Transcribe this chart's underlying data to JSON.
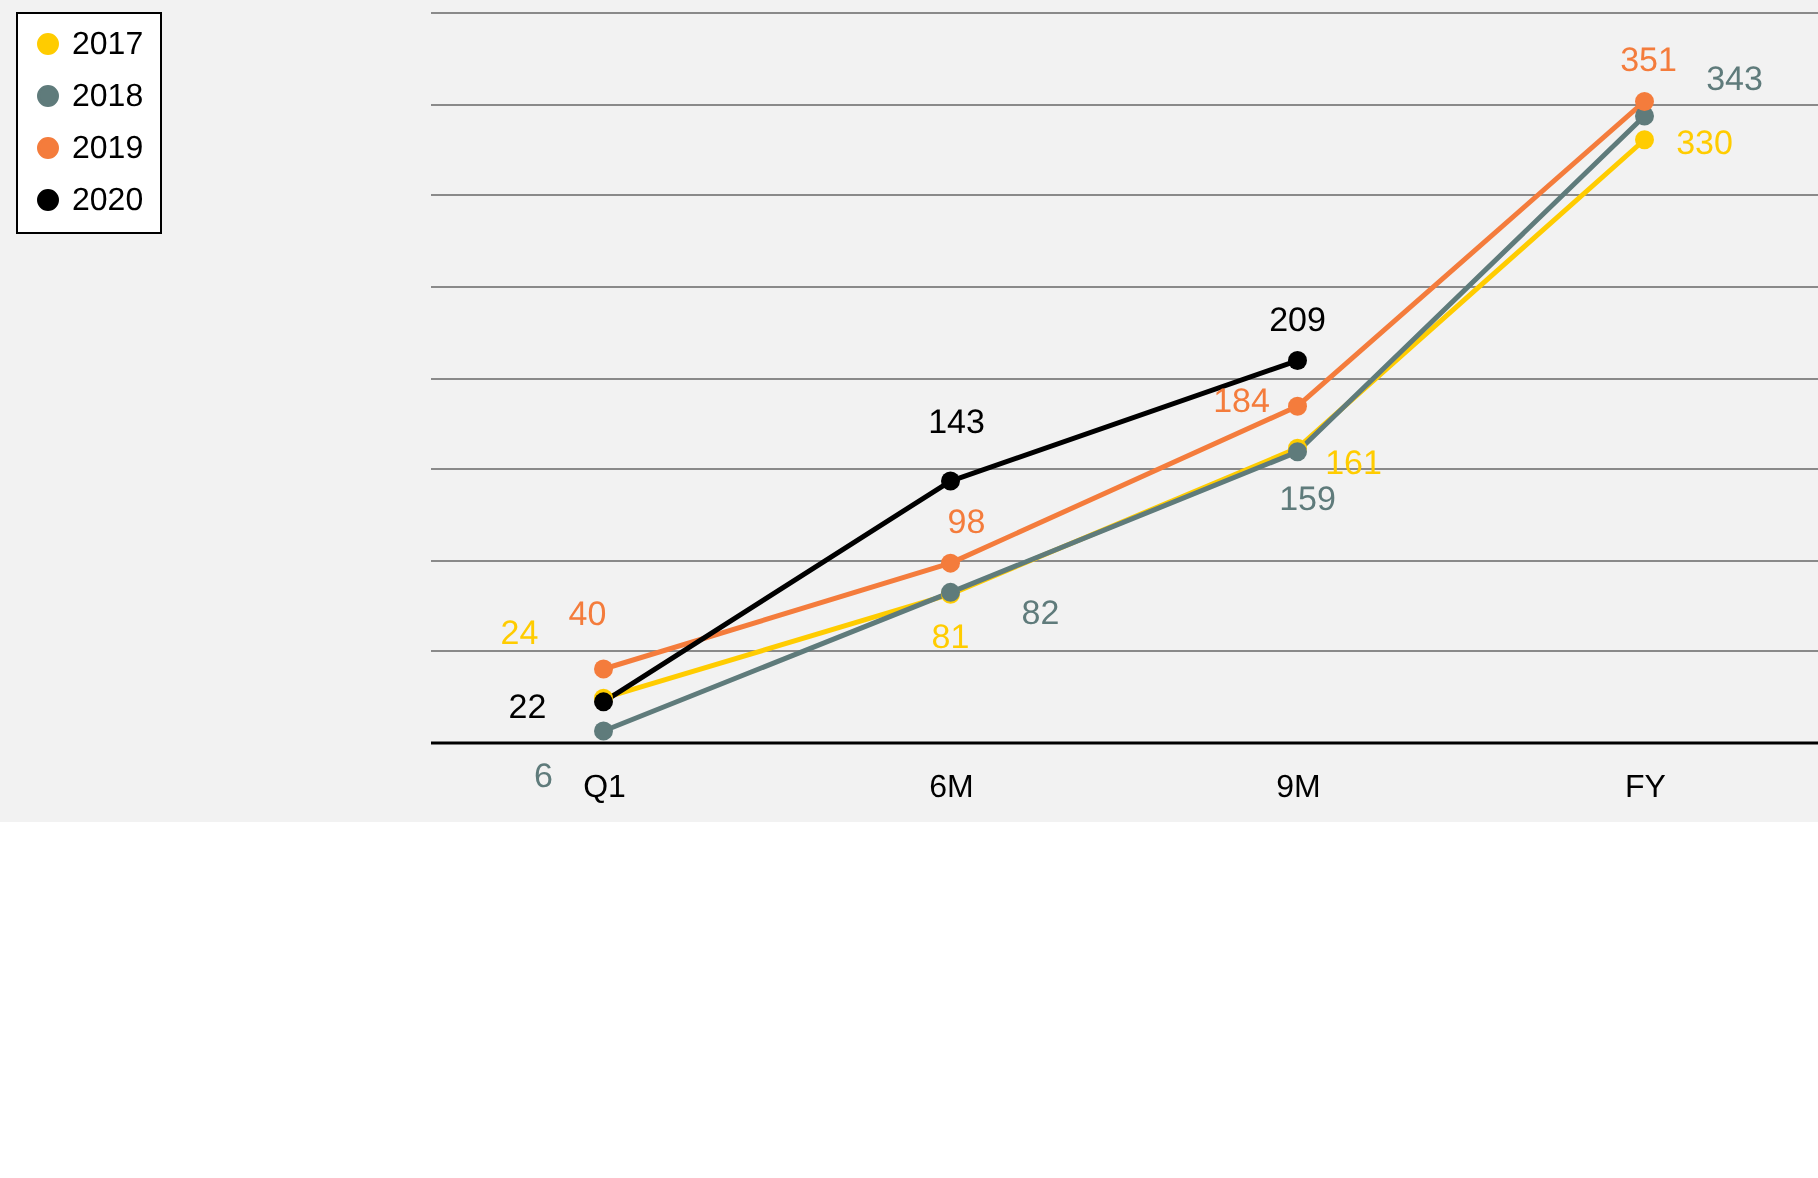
{
  "chart_data": {
    "type": "line",
    "categories": [
      "Q1",
      "6M",
      "9M",
      "FY"
    ],
    "series": [
      {
        "name": "2017",
        "color": "#ffcc00",
        "values": [
          24,
          81,
          161,
          330
        ]
      },
      {
        "name": "2018",
        "color": "#5f7b7b",
        "values": [
          6,
          82,
          159,
          343
        ]
      },
      {
        "name": "2019",
        "color": "#f47c3c",
        "values": [
          40,
          98,
          184,
          351
        ]
      },
      {
        "name": "2020",
        "color": "#000000",
        "values": [
          22,
          143,
          209,
          null
        ]
      }
    ],
    "ylim": [
      0,
      400
    ],
    "yticks": [
      {
        "value": 0,
        "label": null
      },
      {
        "value": 50,
        "label": null
      },
      {
        "value": 100,
        "label": null
      },
      {
        "value": 150,
        "label": null
      },
      {
        "value": 200,
        "label": null
      },
      {
        "value": 250,
        "label": null
      },
      {
        "value": 300,
        "label": null
      },
      {
        "value": 350,
        "label": null
      },
      {
        "value": 400,
        "label": null
      }
    ],
    "tick_labels": "x",
    "grid": "y",
    "legend": "top left",
    "marker": "circle",
    "line_style": "solid",
    "data_labels": true
  }
}
